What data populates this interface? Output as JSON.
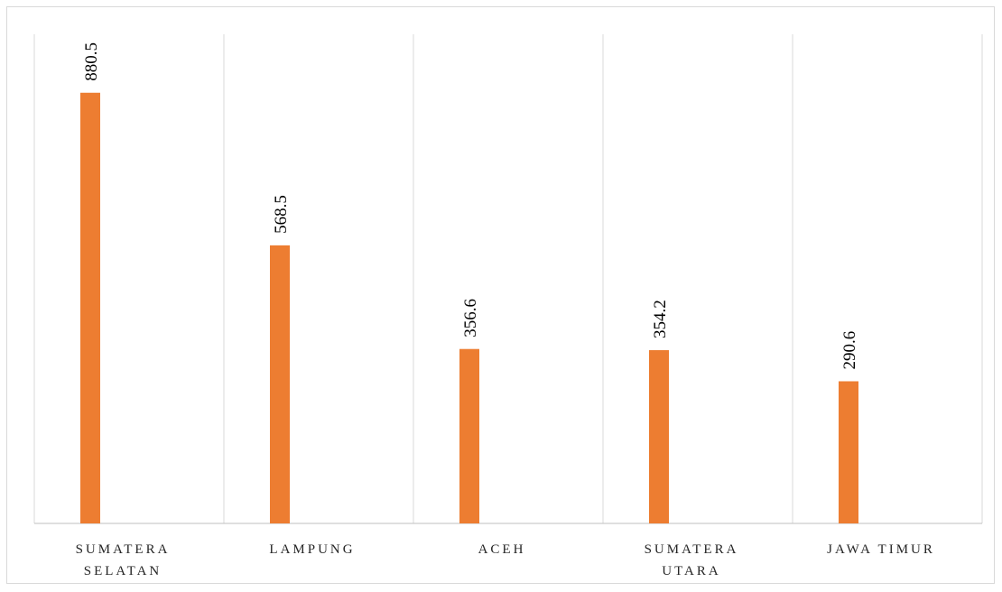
{
  "chart_data": {
    "type": "bar",
    "categories": [
      [
        "SUMATERA",
        "SELATAN"
      ],
      [
        "LAMPUNG"
      ],
      [
        "ACEH"
      ],
      [
        "SUMATERA",
        "UTARA"
      ],
      [
        "JAWA TIMUR"
      ]
    ],
    "values": [
      880.5,
      568.5,
      356.6,
      354.2,
      290.6
    ],
    "value_labels": [
      "880.5",
      "568.5",
      "356.6",
      "354.2",
      "290.6"
    ],
    "ylim": [
      0,
      1000
    ],
    "grid": "vertical",
    "legend": "none",
    "bar_color": "#ED7D31",
    "grid_color": "#D9D9D9",
    "axis_color": "#BFBFBF"
  }
}
